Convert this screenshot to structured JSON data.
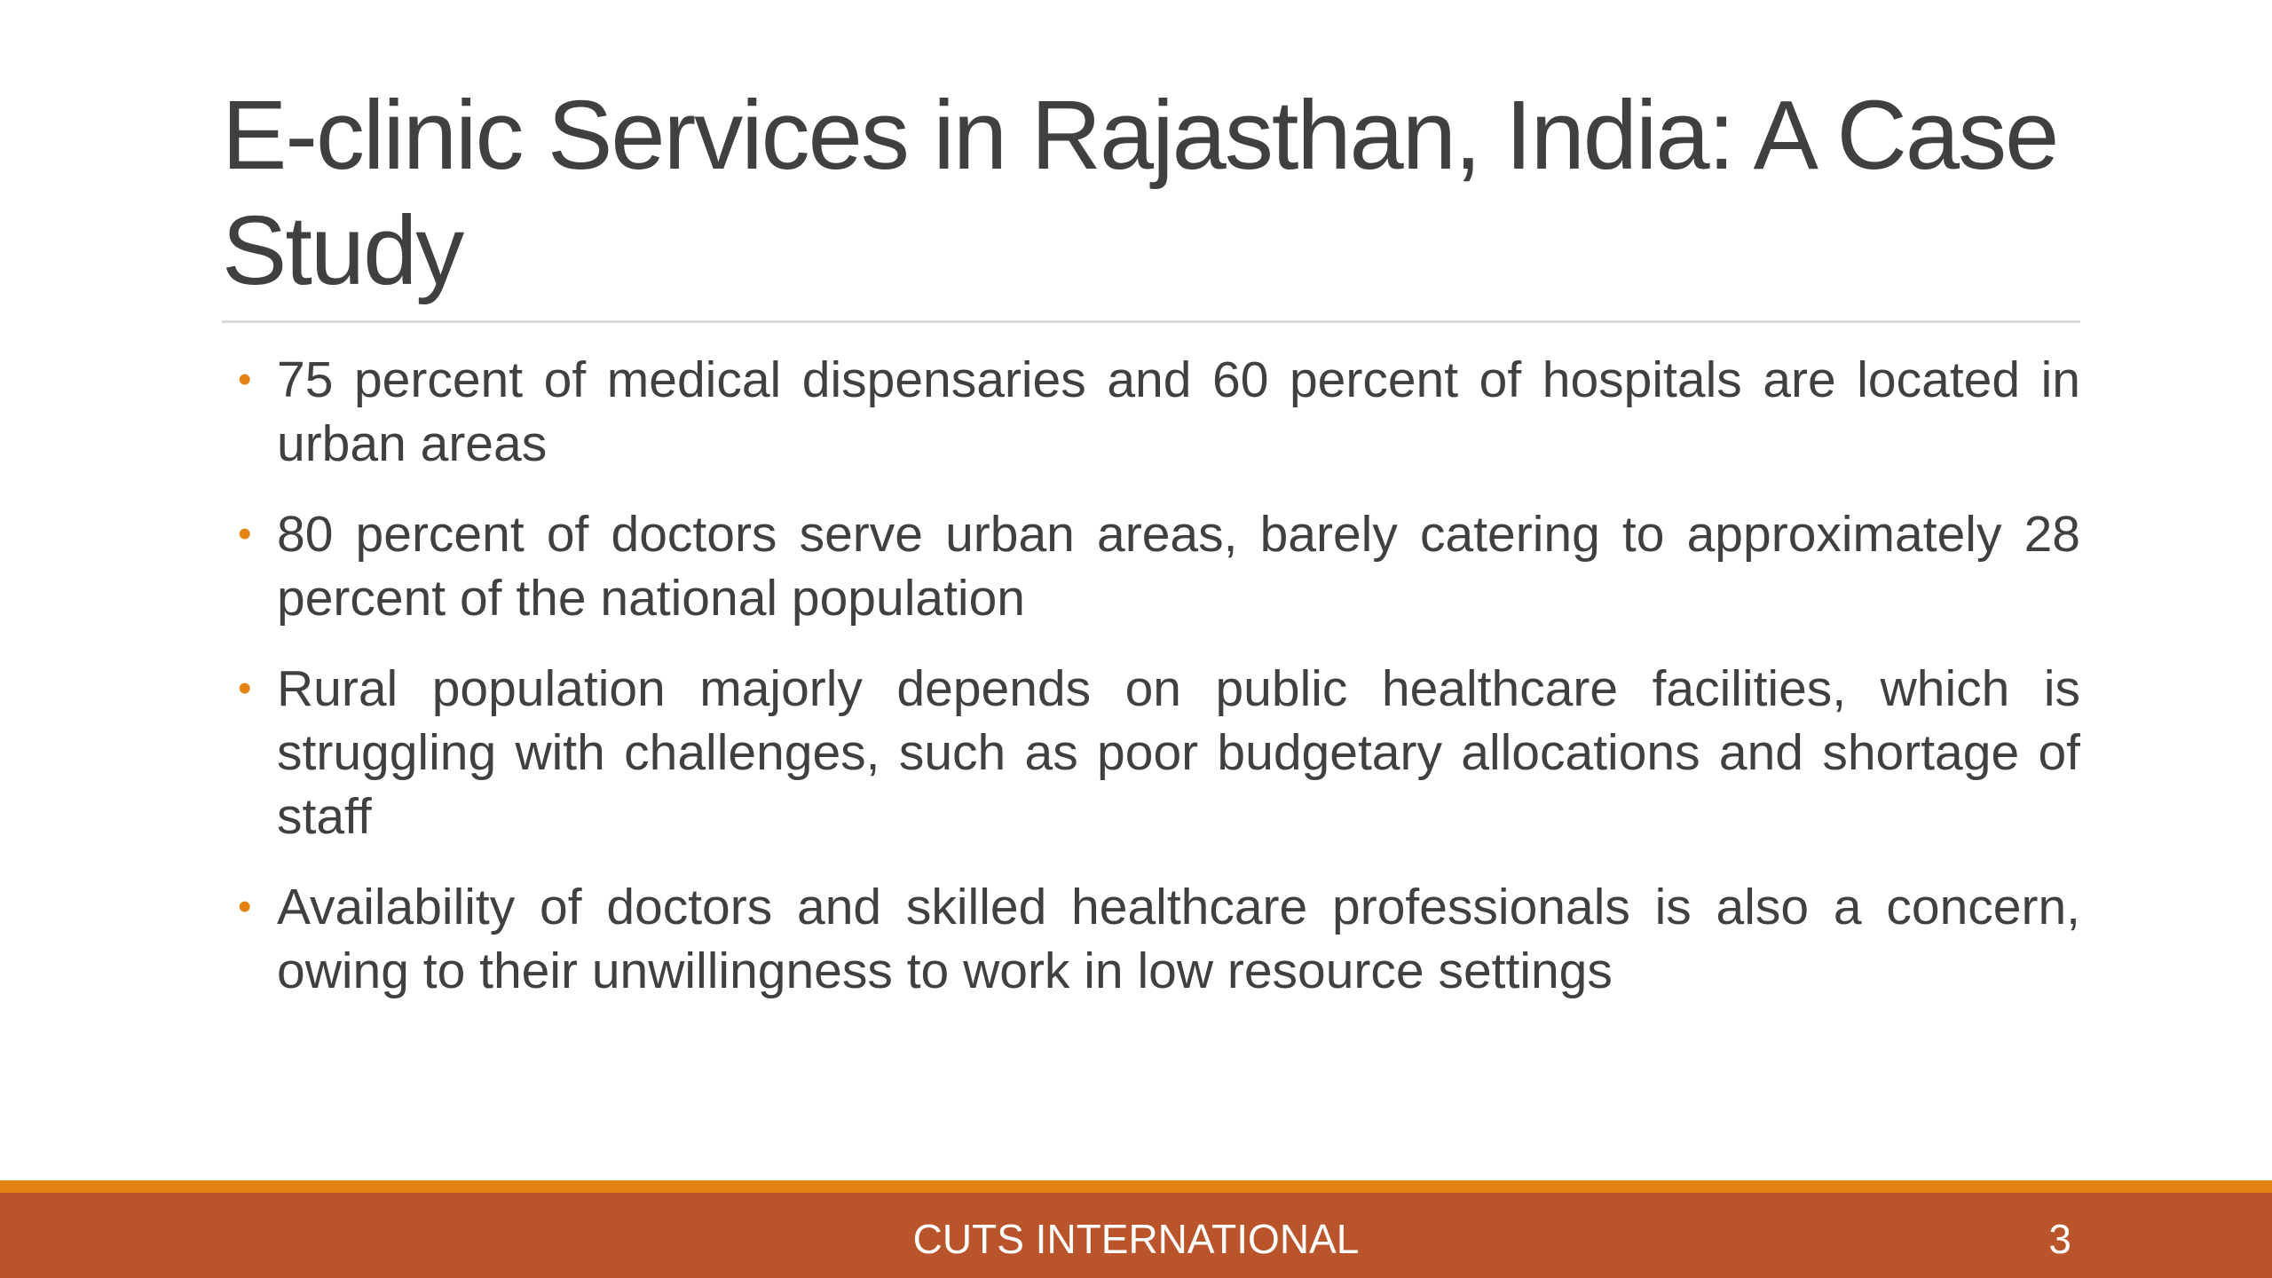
{
  "slide": {
    "title": "E-clinic Services in Rajasthan, India: A Case Study",
    "bullet_symbol": "•",
    "bullets": [
      {
        "text": "75 percent of medical dispensaries and 60 percent of hospitals are located in urban areas"
      },
      {
        "text": "80 percent of doctors serve urban areas, barely catering to approximately 28 percent of the national population"
      },
      {
        "text": "Rural population majorly depends on public healthcare facilities, which is struggling with challenges, such as poor budgetary allocations and shortage of staff"
      },
      {
        "text": "Availability of doctors and skilled healthcare professionals is also a concern, owing to their unwillingness to work in low resource settings"
      }
    ],
    "footer": {
      "organization": "CUTS INTERNATIONAL",
      "page_number": "3"
    }
  },
  "colors": {
    "title_text": "#404040",
    "body_text": "#404040",
    "bullet_accent": "#e48312",
    "footer_accent": "#e48312",
    "footer_bar": "#b9542b",
    "footer_text": "#ffffff",
    "rule": "#d9d9d9"
  }
}
